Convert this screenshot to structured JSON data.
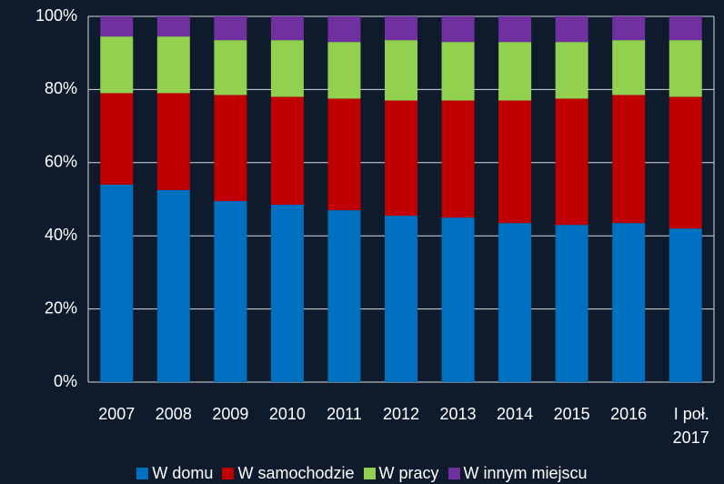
{
  "chart_data": {
    "type": "stacked_bar",
    "categories": [
      "2007",
      "2008",
      "2009",
      "2010",
      "2011",
      "2012",
      "2013",
      "2014",
      "2015",
      "2016",
      "I poł. 2017"
    ],
    "series": [
      {
        "name": "W domu",
        "color": "#0070c0",
        "values": [
          54,
          52.5,
          49.5,
          48.5,
          47,
          45.5,
          45,
          43.5,
          43,
          43.5,
          42
        ]
      },
      {
        "name": "W samochodzie",
        "color": "#c00000",
        "values": [
          25,
          26.5,
          29,
          29.5,
          30.5,
          31.5,
          32,
          33.5,
          34.5,
          35,
          36
        ]
      },
      {
        "name": "W pracy",
        "color": "#92d050",
        "values": [
          15.5,
          15.5,
          15,
          15.5,
          15.5,
          16.5,
          16,
          16,
          15.5,
          15,
          15.5
        ]
      },
      {
        "name": "W innym miejscu",
        "color": "#7030a0",
        "values": [
          5.5,
          5.5,
          6.5,
          6.5,
          7,
          6.5,
          7,
          7,
          7,
          6.5,
          6.5
        ]
      }
    ],
    "ylim": [
      0,
      100
    ],
    "yticks": [
      {
        "value": 0,
        "label": "0%"
      },
      {
        "value": 20,
        "label": "20%"
      },
      {
        "value": 40,
        "label": "40%"
      },
      {
        "value": 60,
        "label": "60%"
      },
      {
        "value": 80,
        "label": "80%"
      },
      {
        "value": 100,
        "label": "100%"
      }
    ],
    "grid": true,
    "legend": "bottom"
  }
}
